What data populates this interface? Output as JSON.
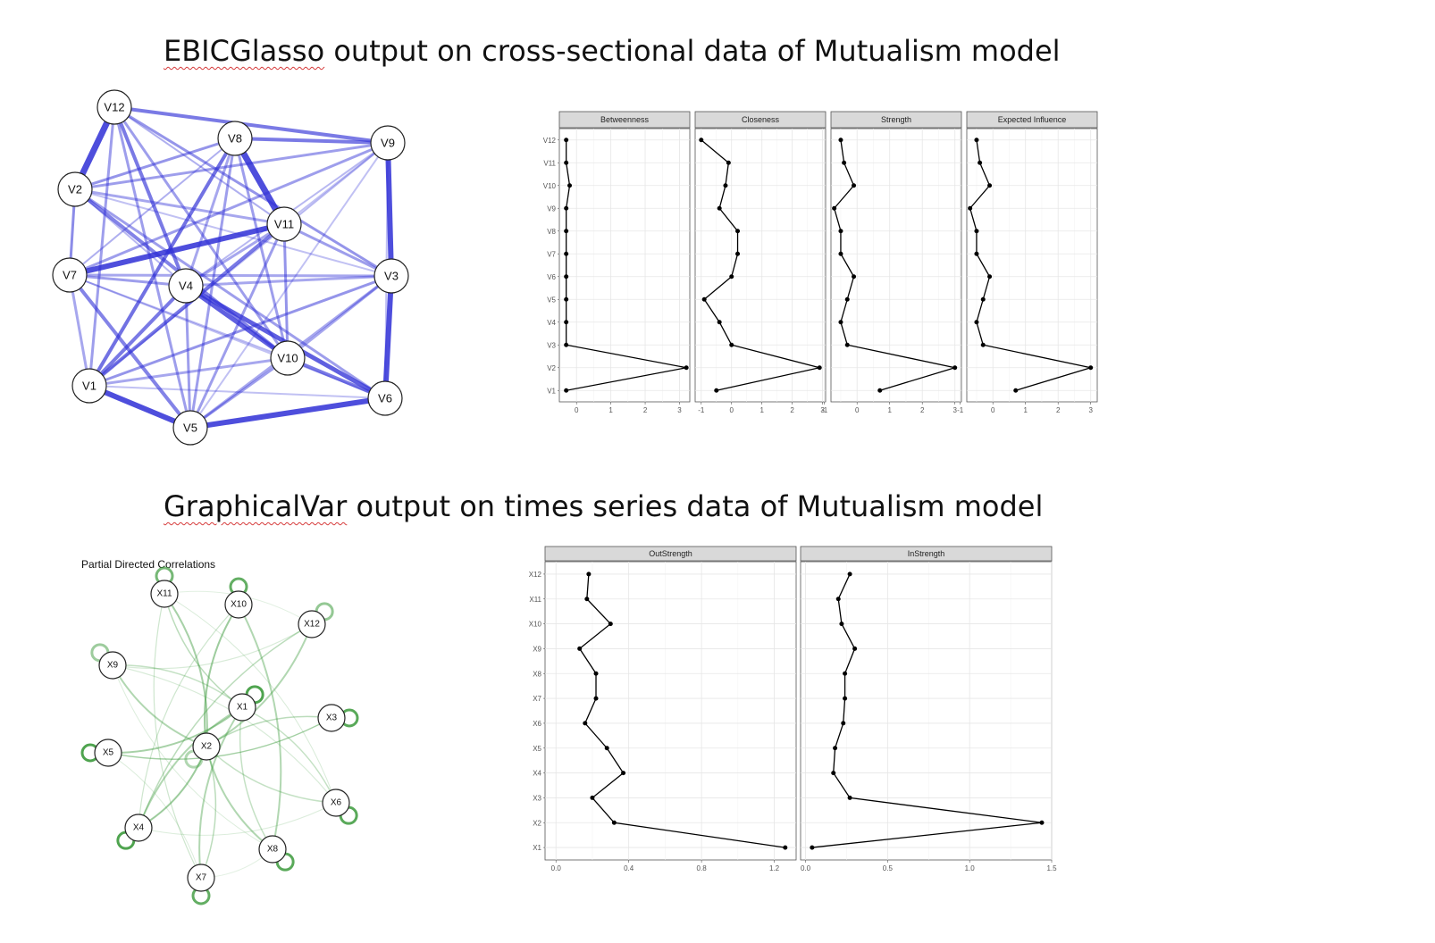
{
  "slide": {
    "title_top": "EBICGlasso output on cross-sectional data of Mutualism model",
    "title_top_underlined": "EBICGlasso",
    "title_top_rest": " output on cross-sectional data of Mutualism model",
    "title_bottom": "GraphicalVar output on times series data of Mutualism model",
    "title_bottom_underlined": "GraphicalVar",
    "title_bottom_rest": " output on times series data of Mutualism model"
  },
  "colors": {
    "glasso_edge": "#2f2fd6",
    "var_edge": "#3c9a3c",
    "strip_fill": "#d9d9d9",
    "line": "#000000"
  },
  "network_top": {
    "nodes": [
      "V12",
      "V8",
      "V9",
      "V2",
      "V11",
      "V7",
      "V4",
      "V3",
      "V10",
      "V1",
      "V6",
      "V5"
    ]
  },
  "network_bottom": {
    "title": "Partial Directed Correlations",
    "nodes": [
      "X11",
      "X10",
      "X12",
      "X9",
      "X1",
      "X3",
      "X2",
      "X5",
      "X6",
      "X4",
      "X8",
      "X7"
    ]
  },
  "chart_data": [
    {
      "type": "line",
      "orientation": "horizontal-profile",
      "categories": [
        "V1",
        "V2",
        "V3",
        "V4",
        "V5",
        "V6",
        "V7",
        "V8",
        "V9",
        "V10",
        "V11",
        "V12"
      ],
      "panels": [
        {
          "name": "Betweenness",
          "xticks": [
            0,
            1,
            2,
            3
          ],
          "xlim": [
            -0.5,
            3.3
          ],
          "values": [
            -0.3,
            3.2,
            -0.3,
            -0.3,
            -0.3,
            -0.3,
            -0.3,
            -0.3,
            -0.3,
            -0.2,
            -0.3,
            -0.3
          ]
        },
        {
          "name": "Closeness",
          "xticks": [
            -1,
            0,
            1,
            2,
            3
          ],
          "xlim": [
            -1.2,
            3.1
          ],
          "values": [
            -0.5,
            2.9,
            0.0,
            -0.4,
            -0.9,
            0.0,
            0.2,
            0.2,
            -0.4,
            -0.2,
            -0.1,
            -1.0
          ]
        },
        {
          "name": "Strength",
          "xticks": [
            -1,
            0,
            1,
            2,
            3
          ],
          "xlim": [
            -0.8,
            3.2
          ],
          "values": [
            0.7,
            3.0,
            -0.3,
            -0.5,
            -0.3,
            -0.1,
            -0.5,
            -0.5,
            -0.7,
            -0.1,
            -0.4,
            -0.5
          ]
        },
        {
          "name": "Expected Influence",
          "xticks": [
            -1,
            0,
            1,
            2,
            3
          ],
          "xlim": [
            -0.8,
            3.2
          ],
          "values": [
            0.7,
            3.0,
            -0.3,
            -0.5,
            -0.3,
            -0.1,
            -0.5,
            -0.5,
            -0.7,
            -0.1,
            -0.4,
            -0.5
          ]
        }
      ]
    },
    {
      "type": "line",
      "orientation": "horizontal-profile",
      "categories": [
        "X1",
        "X2",
        "X3",
        "X4",
        "X5",
        "X6",
        "X7",
        "X8",
        "X9",
        "X10",
        "X11",
        "X12"
      ],
      "panels": [
        {
          "name": "OutStrength",
          "xticks": [
            0.0,
            0.4,
            0.8,
            1.2
          ],
          "xlim": [
            -0.06,
            1.32
          ],
          "values": [
            1.26,
            0.32,
            0.2,
            0.37,
            0.28,
            0.16,
            0.22,
            0.22,
            0.13,
            0.3,
            0.17,
            0.18
          ]
        },
        {
          "name": "InStrength",
          "xticks": [
            0.0,
            0.5,
            1.0,
            1.5
          ],
          "xlim": [
            -0.03,
            1.5
          ],
          "values": [
            0.04,
            1.44,
            0.27,
            0.17,
            0.18,
            0.23,
            0.24,
            0.24,
            0.3,
            0.22,
            0.2,
            0.27
          ]
        }
      ]
    }
  ]
}
